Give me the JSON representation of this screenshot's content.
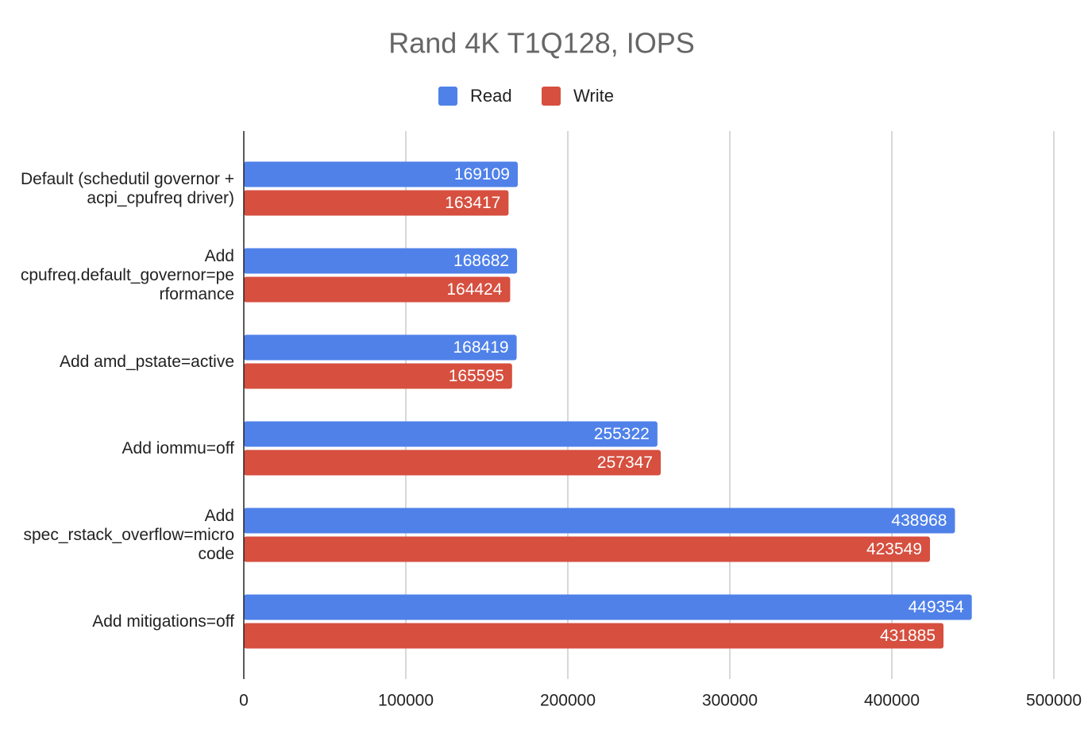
{
  "chart_data": {
    "type": "hbar",
    "title": "Rand  4K T1Q128, IOPS",
    "categories": [
      "Default (schedutil governor + acpi_cpufreq driver)",
      "Add cpufreq.default_governor=performance",
      "Add amd_pstate=active",
      "Add iommu=off",
      "Add spec_rstack_overflow=microcode",
      "Add mitigations=off"
    ],
    "series": [
      {
        "name": "Read",
        "color": "#4f81e9",
        "values": [
          169109,
          168682,
          168419,
          255322,
          438968,
          449354
        ]
      },
      {
        "name": "Write",
        "color": "#d64f3f",
        "values": [
          163417,
          164424,
          165595,
          257347,
          423549,
          431885
        ]
      }
    ],
    "xlim": [
      0,
      500000
    ],
    "xticks": [
      0,
      100000,
      200000,
      300000,
      400000,
      500000
    ],
    "grid": true,
    "legend": "top"
  }
}
